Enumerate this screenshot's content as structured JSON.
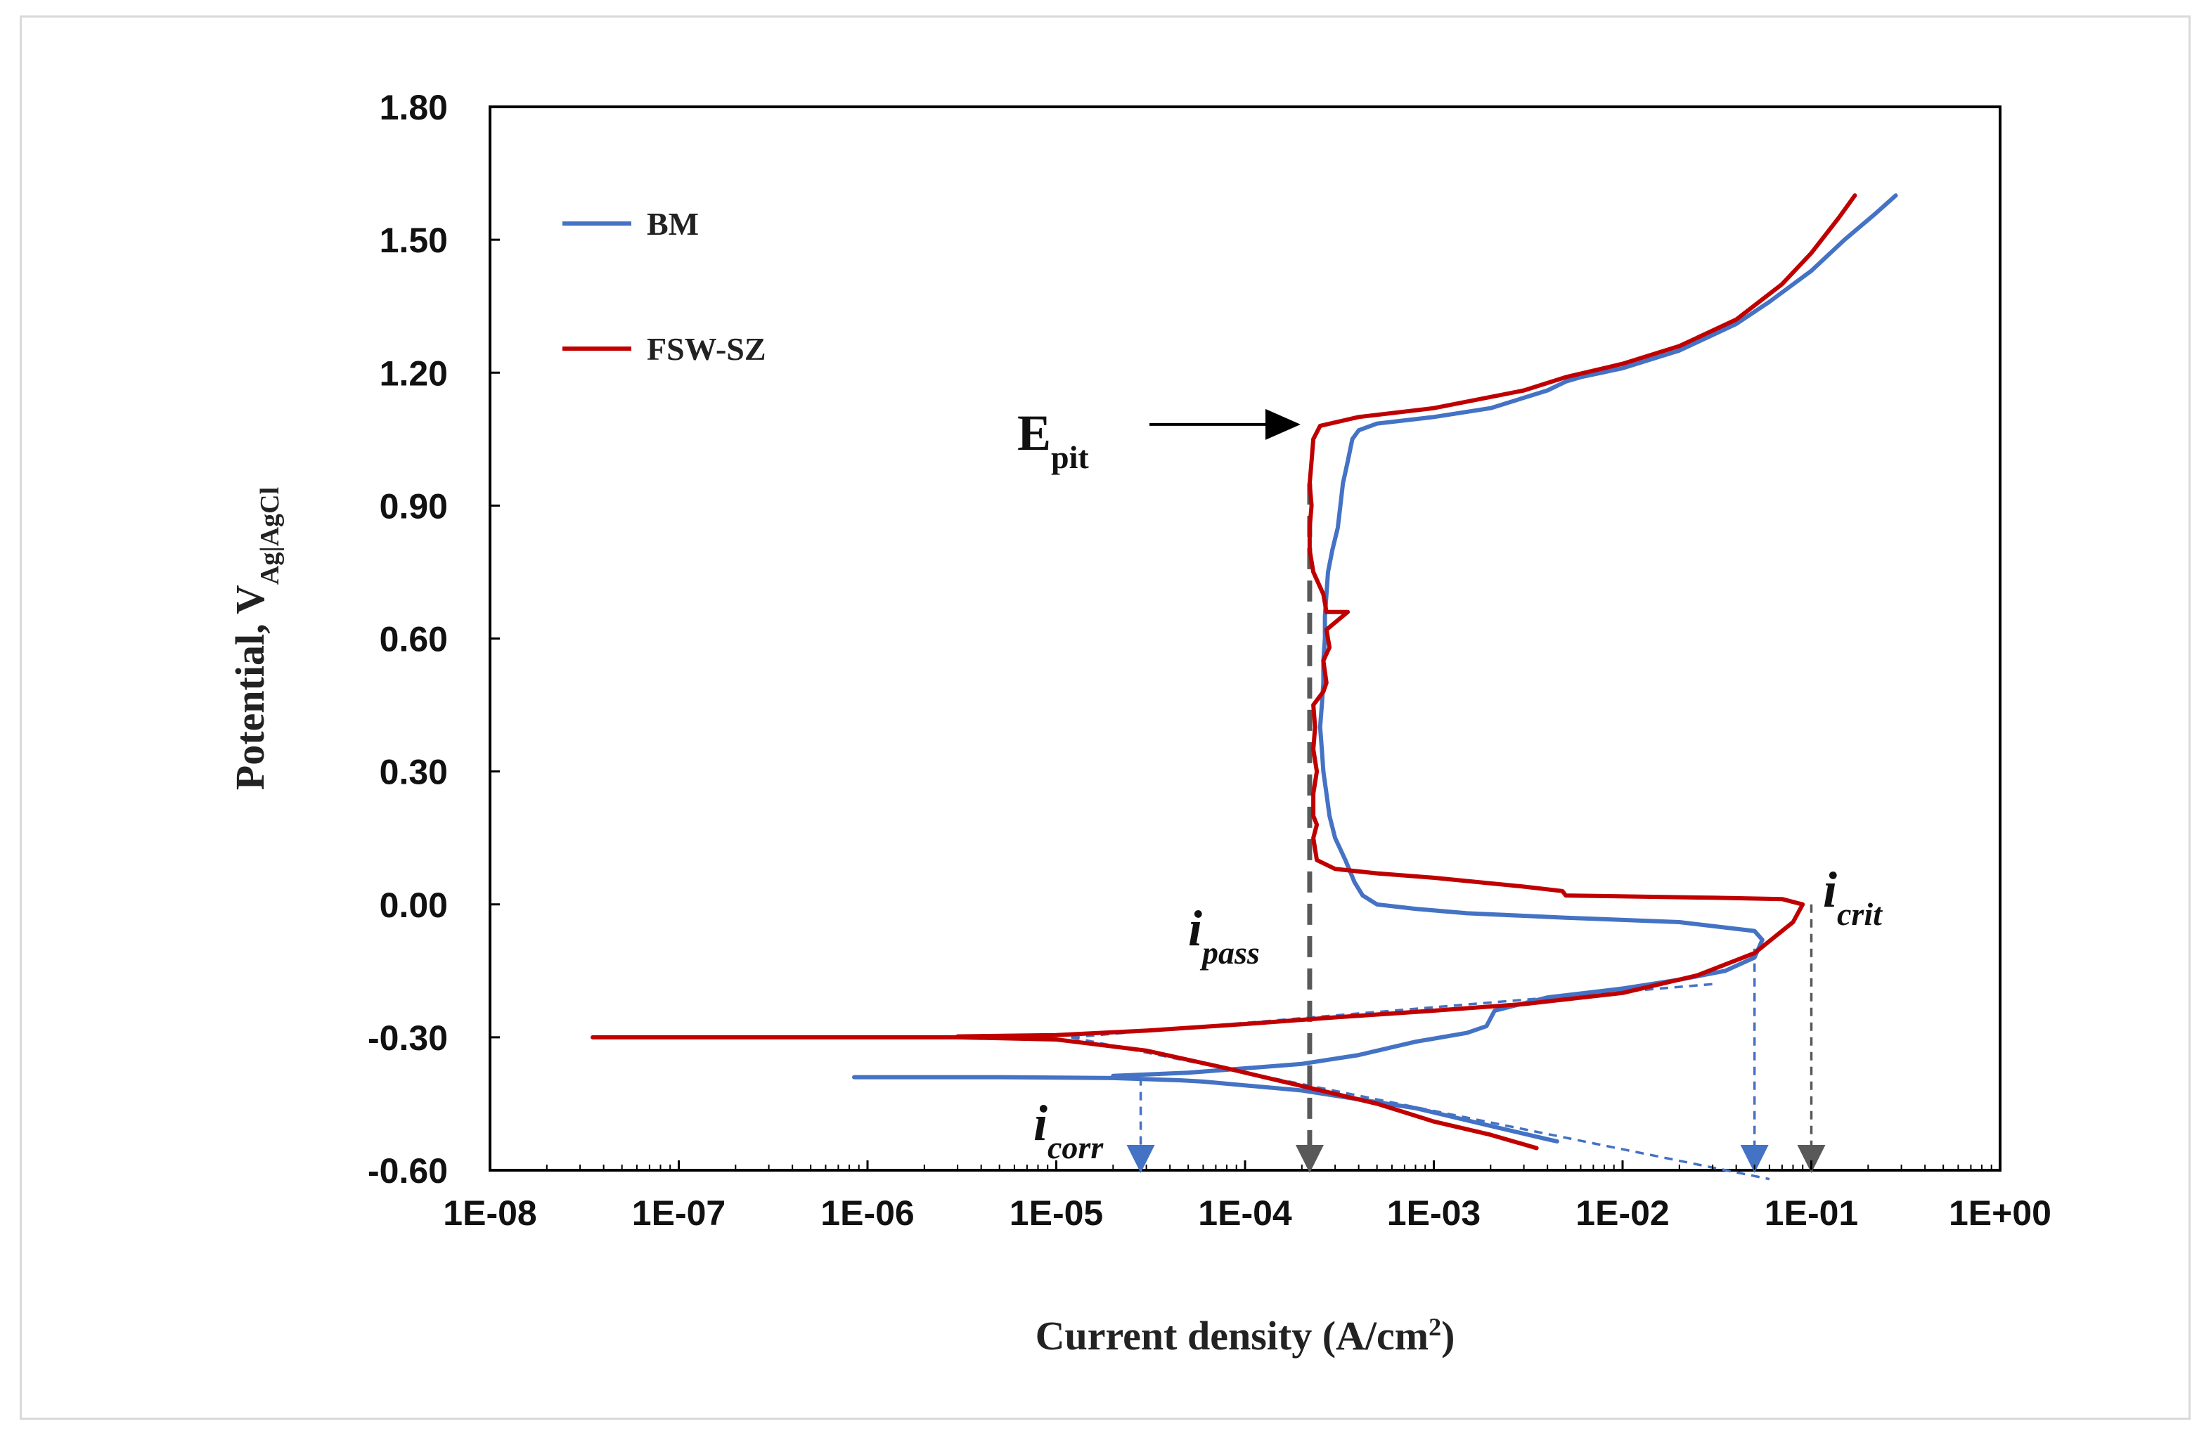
{
  "chart_data": {
    "type": "line",
    "xlabel": "Current density (A/cm",
    "xlabel_sup": "2",
    "xlabel_end": ")",
    "ylabel": "Potential, V",
    "ylabel_sub": "Ag|AgCl",
    "x_scale": "log",
    "xlim": [
      1e-08,
      1
    ],
    "ylim": [
      -0.6,
      1.8
    ],
    "x_ticks": [
      1e-08,
      1e-07,
      1e-06,
      1e-05,
      0.0001,
      0.001,
      0.01,
      0.1,
      1
    ],
    "x_tick_labels": [
      "1E-08",
      "1E-07",
      "1E-06",
      "1E-05",
      "1E-04",
      "1E-03",
      "1E-02",
      "1E-01",
      "1E+00"
    ],
    "y_ticks": [
      -0.6,
      -0.3,
      0.0,
      0.3,
      0.6,
      0.9,
      1.2,
      1.5,
      1.8
    ],
    "y_tick_labels": [
      "-0.60",
      "-0.30",
      "0.00",
      "0.30",
      "0.60",
      "0.90",
      "1.20",
      "1.50",
      "1.80"
    ],
    "legend": {
      "position": "top-left"
    },
    "series": [
      {
        "name": "BM",
        "color": "#4472c4",
        "points": [
          [
            8.5e-07,
            -0.39
          ],
          [
            5e-06,
            -0.39
          ],
          [
            2e-05,
            -0.392
          ],
          [
            4.5e-05,
            -0.397
          ],
          [
            6e-05,
            -0.4
          ],
          [
            0.0002,
            -0.42
          ],
          [
            0.0008,
            -0.46
          ],
          [
            0.002,
            -0.5
          ],
          [
            0.004,
            -0.53
          ],
          [
            0.0045,
            -0.535
          ],
          "break",
          [
            2e-05,
            -0.387
          ],
          [
            5e-05,
            -0.38
          ],
          [
            0.0001,
            -0.37
          ],
          [
            0.0002,
            -0.36
          ],
          [
            0.0004,
            -0.34
          ],
          [
            0.0008,
            -0.31
          ],
          [
            0.0015,
            -0.29
          ],
          [
            0.0019,
            -0.275
          ],
          [
            0.0021,
            -0.24
          ],
          [
            0.004,
            -0.21
          ],
          [
            0.01,
            -0.19
          ],
          [
            0.02,
            -0.17
          ],
          [
            0.035,
            -0.15
          ],
          [
            0.05,
            -0.12
          ],
          [
            0.055,
            -0.08
          ],
          [
            0.05,
            -0.06
          ],
          [
            0.02,
            -0.04
          ],
          [
            0.005,
            -0.03
          ],
          [
            0.0015,
            -0.02
          ],
          [
            0.0008,
            -0.01
          ],
          [
            0.0005,
            0.0
          ],
          [
            0.00042,
            0.02
          ],
          [
            0.00038,
            0.05
          ],
          [
            0.00034,
            0.1
          ],
          [
            0.0003,
            0.15
          ],
          [
            0.00028,
            0.2
          ],
          [
            0.00027,
            0.25
          ],
          [
            0.00026,
            0.3
          ],
          [
            0.000255,
            0.35
          ],
          [
            0.00025,
            0.4
          ],
          [
            0.000255,
            0.45
          ],
          [
            0.00026,
            0.5
          ],
          [
            0.00026,
            0.55
          ],
          [
            0.000265,
            0.6
          ],
          [
            0.000265,
            0.65
          ],
          [
            0.00027,
            0.7
          ],
          [
            0.000275,
            0.75
          ],
          [
            0.00029,
            0.8
          ],
          [
            0.00031,
            0.85
          ],
          [
            0.00032,
            0.9
          ],
          [
            0.00033,
            0.95
          ],
          [
            0.00035,
            1.0
          ],
          [
            0.00037,
            1.05
          ],
          [
            0.0004,
            1.07
          ],
          [
            0.0005,
            1.085
          ],
          [
            0.001,
            1.1
          ],
          [
            0.002,
            1.12
          ],
          [
            0.004,
            1.16
          ],
          [
            0.005,
            1.18
          ],
          [
            0.006,
            1.19
          ],
          [
            0.01,
            1.21
          ],
          [
            0.02,
            1.25
          ],
          [
            0.04,
            1.31
          ],
          [
            0.06,
            1.36
          ],
          [
            0.1,
            1.43
          ],
          [
            0.15,
            1.5
          ],
          [
            0.22,
            1.56
          ],
          [
            0.28,
            1.6
          ]
        ]
      },
      {
        "name": "FSW-SZ",
        "color": "#c00000",
        "points": [
          [
            3.5e-08,
            -0.3
          ],
          [
            5e-07,
            -0.3
          ],
          [
            3e-06,
            -0.3
          ],
          [
            1e-05,
            -0.305
          ],
          [
            3e-05,
            -0.33
          ],
          [
            8e-05,
            -0.37
          ],
          [
            0.0002,
            -0.41
          ],
          [
            0.0005,
            -0.45
          ],
          [
            0.001,
            -0.49
          ],
          [
            0.002,
            -0.52
          ],
          [
            0.0035,
            -0.55
          ],
          "break",
          [
            3e-06,
            -0.298
          ],
          [
            1e-05,
            -0.295
          ],
          [
            3e-05,
            -0.285
          ],
          [
            0.0001,
            -0.27
          ],
          [
            0.0003,
            -0.255
          ],
          [
            0.001,
            -0.24
          ],
          [
            0.003,
            -0.225
          ],
          [
            0.01,
            -0.2
          ],
          [
            0.025,
            -0.16
          ],
          [
            0.05,
            -0.11
          ],
          [
            0.08,
            -0.04
          ],
          [
            0.09,
            0.0
          ],
          [
            0.07,
            0.012
          ],
          [
            0.03,
            0.015
          ],
          [
            0.005,
            0.02
          ],
          [
            0.0048,
            0.03
          ],
          [
            0.003,
            0.04
          ],
          [
            0.001,
            0.06
          ],
          [
            0.0005,
            0.07
          ],
          [
            0.0003,
            0.08
          ],
          [
            0.00024,
            0.1
          ],
          [
            0.00023,
            0.15
          ],
          [
            0.00024,
            0.18
          ],
          [
            0.00023,
            0.2
          ],
          [
            0.00023,
            0.25
          ],
          [
            0.00024,
            0.3
          ],
          [
            0.00023,
            0.35
          ],
          [
            0.000235,
            0.4
          ],
          [
            0.00023,
            0.45
          ],
          [
            0.00026,
            0.48
          ],
          [
            0.00027,
            0.5
          ],
          [
            0.00026,
            0.55
          ],
          [
            0.00028,
            0.58
          ],
          [
            0.00027,
            0.62
          ],
          [
            0.00035,
            0.66
          ],
          [
            0.00027,
            0.66
          ],
          [
            0.00026,
            0.7
          ],
          [
            0.00023,
            0.75
          ],
          [
            0.00022,
            0.8
          ],
          [
            0.00022,
            0.85
          ],
          [
            0.000225,
            0.9
          ],
          [
            0.00022,
            0.95
          ],
          [
            0.000225,
            1.0
          ],
          [
            0.00023,
            1.05
          ],
          [
            0.00025,
            1.08
          ],
          [
            0.0004,
            1.1
          ],
          [
            0.001,
            1.12
          ],
          [
            0.003,
            1.16
          ],
          [
            0.005,
            1.19
          ],
          [
            0.01,
            1.22
          ],
          [
            0.02,
            1.26
          ],
          [
            0.04,
            1.32
          ],
          [
            0.07,
            1.4
          ],
          [
            0.1,
            1.47
          ],
          [
            0.14,
            1.55
          ],
          [
            0.17,
            1.6
          ]
        ]
      }
    ],
    "annotations": [
      {
        "label": "E",
        "sub": "pit",
        "style": "upright",
        "x": 0.00023,
        "y": 1.08
      },
      {
        "label": "i",
        "sub": "pass",
        "style": "italic",
        "x": 0.00022,
        "y": -0.6
      },
      {
        "label": "i",
        "sub": "corr",
        "style": "italic",
        "x": 2.8e-05,
        "y": -0.6
      },
      {
        "label": "i",
        "sub": "crit",
        "style": "italic",
        "x": 0.1,
        "y": 0.0
      }
    ],
    "guides": [
      {
        "kind": "tafel",
        "color": "#4472c4",
        "from": [
          1.2e-05,
          -0.3
        ],
        "to": [
          0.03,
          -0.18
        ]
      },
      {
        "kind": "tafel",
        "color": "#4472c4",
        "from": [
          1.2e-05,
          -0.3
        ],
        "to": [
          0.06,
          -0.62
        ]
      },
      {
        "kind": "drop",
        "color": "#4472c4",
        "from": [
          2.8e-05,
          -0.39
        ],
        "to": [
          2.8e-05,
          -0.6
        ],
        "arrow": true
      },
      {
        "kind": "drop",
        "color": "#4472c4",
        "from": [
          0.05,
          -0.1
        ],
        "to": [
          0.05,
          -0.6
        ],
        "arrow": true
      },
      {
        "kind": "drop",
        "color": "#595959",
        "from": [
          0.1,
          0.0
        ],
        "to": [
          0.1,
          -0.6
        ],
        "arrow": true
      },
      {
        "kind": "drop",
        "color": "#595959",
        "from": [
          0.00022,
          0.95
        ],
        "to": [
          0.00022,
          -0.6
        ],
        "arrow": true
      }
    ]
  }
}
